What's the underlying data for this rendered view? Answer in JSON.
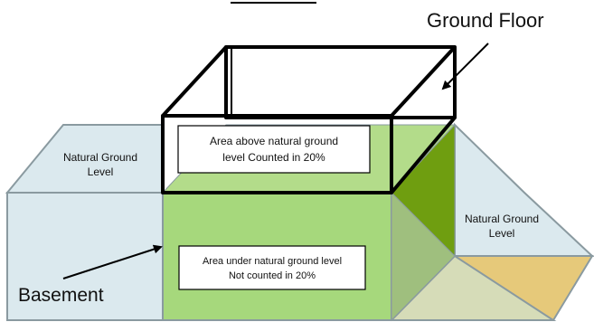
{
  "diagram": {
    "labels": {
      "ground_floor": "Ground Floor",
      "basement": "Basement",
      "natural_ground_left_line1": "Natural Ground",
      "natural_ground_left_line2": "Level",
      "natural_ground_right_line1": "Natural Ground",
      "natural_ground_right_line2": "Level",
      "above_box_line1": "Area above natural ground",
      "above_box_line2": "level Counted in 20%",
      "under_box_line1": "Area under natural ground level",
      "under_box_line2": "Not counted in 20%"
    },
    "colors": {
      "ground_fill": "#dbe9ee",
      "ground_stroke": "#8a9aa0",
      "basement_front": "#a6d87c",
      "basement_top": "#b3dc8a",
      "basement_side_dark": "#6f9e10",
      "basement_side_mid": "#9fbf7e",
      "pale_olive": "#d6dcb8",
      "tan": "#e6c97a",
      "outline": "#000000"
    }
  }
}
